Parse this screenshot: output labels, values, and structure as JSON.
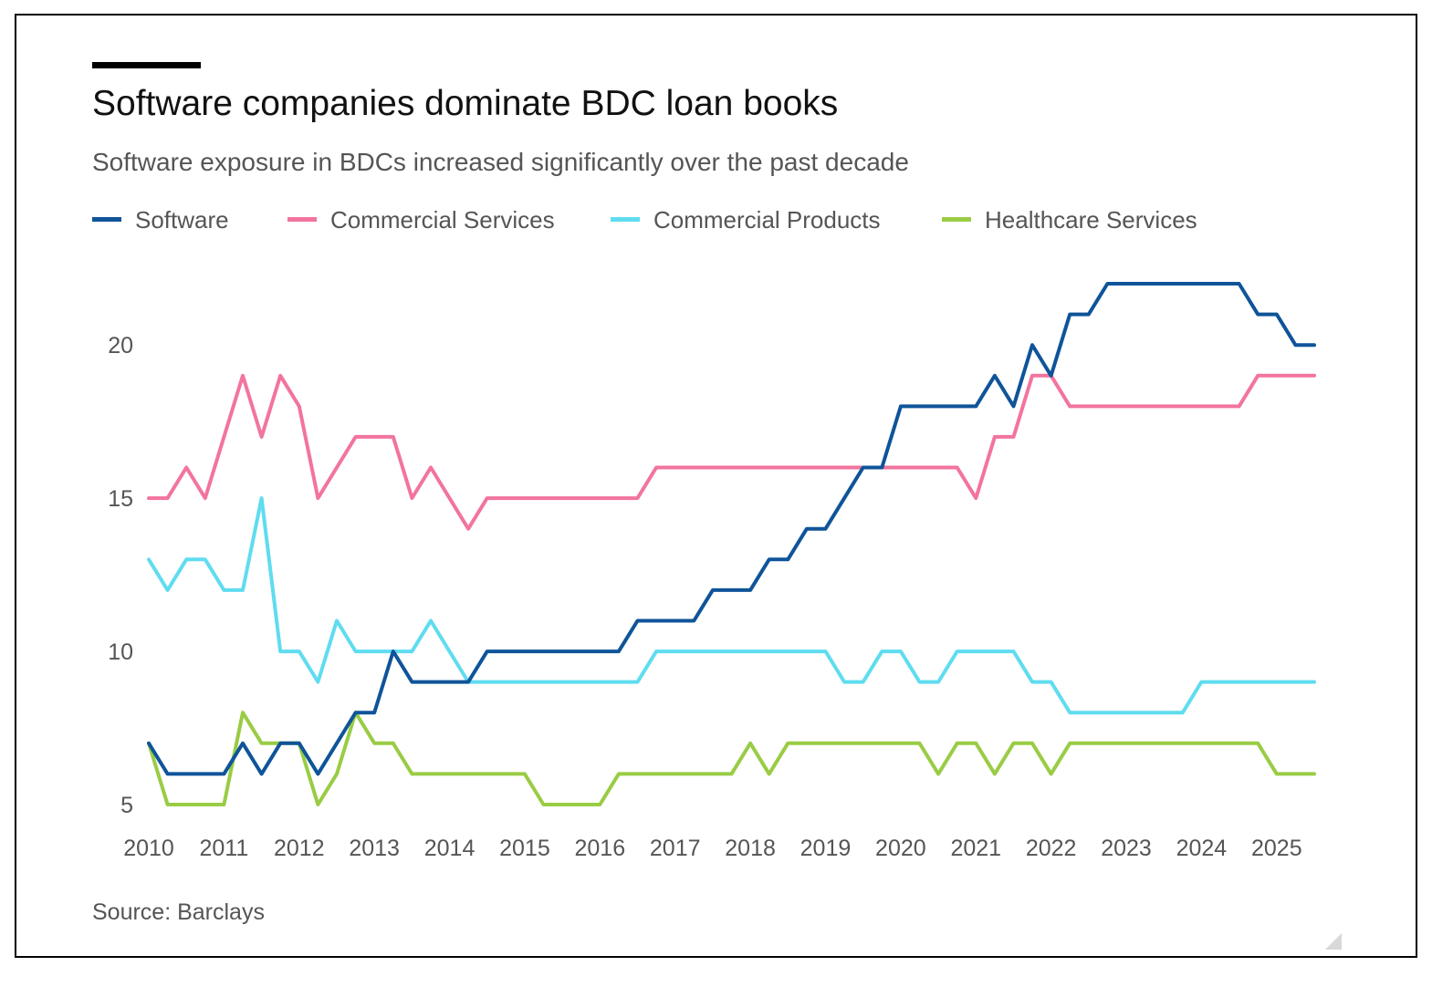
{
  "header": {
    "title": "Software companies dominate BDC loan books",
    "subtitle": "Software exposure in BDCs increased significantly over the past decade"
  },
  "footer": {
    "source": "Source: Barclays"
  },
  "chart_data": {
    "type": "line",
    "title": "Software companies dominate BDC loan books",
    "subtitle": "Software exposure in BDCs increased significantly over the past decade",
    "xlabel": "",
    "ylabel": "",
    "ylim": [
      5,
      22
    ],
    "xlim": [
      2010,
      2025.5
    ],
    "x_ticks": [
      2010,
      2011,
      2012,
      2013,
      2014,
      2015,
      2016,
      2017,
      2018,
      2019,
      2020,
      2021,
      2022,
      2023,
      2024,
      2025
    ],
    "y_ticks": [
      5,
      10,
      15,
      20
    ],
    "grid": false,
    "legend_position": "top",
    "x": [
      2010,
      2010.25,
      2010.5,
      2010.75,
      2011,
      2011.25,
      2011.5,
      2011.75,
      2012,
      2012.25,
      2012.5,
      2012.75,
      2013,
      2013.25,
      2013.5,
      2013.75,
      2014,
      2014.25,
      2014.5,
      2014.75,
      2015,
      2015.25,
      2015.5,
      2015.75,
      2016,
      2016.25,
      2016.5,
      2016.75,
      2017,
      2017.25,
      2017.5,
      2017.75,
      2018,
      2018.25,
      2018.5,
      2018.75,
      2019,
      2019.25,
      2019.5,
      2019.75,
      2020,
      2020.25,
      2020.5,
      2020.75,
      2021,
      2021.25,
      2021.5,
      2021.75,
      2022,
      2022.25,
      2022.5,
      2022.75,
      2023,
      2023.25,
      2023.5,
      2023.75,
      2024,
      2024.25,
      2024.5,
      2024.75,
      2025,
      2025.25,
      2025.5
    ],
    "series": [
      {
        "name": "Software",
        "color": "#0f5499",
        "values": [
          7,
          6,
          6,
          6,
          6,
          7,
          6,
          7,
          7,
          6,
          7,
          8,
          8,
          10,
          9,
          9,
          9,
          9,
          10,
          10,
          10,
          10,
          10,
          10,
          10,
          10,
          11,
          11,
          11,
          11,
          12,
          12,
          12,
          13,
          13,
          14,
          14,
          15,
          16,
          16,
          18,
          18,
          18,
          18,
          18,
          19,
          18,
          20,
          19,
          21,
          21,
          22,
          22,
          22,
          22,
          22,
          22,
          22,
          22,
          21,
          21,
          20,
          20
        ]
      },
      {
        "name": "Commercial Services",
        "color": "#f2749e",
        "values": [
          15,
          15,
          16,
          15,
          17,
          19,
          17,
          19,
          18,
          15,
          16,
          17,
          17,
          17,
          15,
          16,
          15,
          14,
          15,
          15,
          15,
          15,
          15,
          15,
          15,
          15,
          15,
          16,
          16,
          16,
          16,
          16,
          16,
          16,
          16,
          16,
          16,
          16,
          16,
          16,
          16,
          16,
          16,
          16,
          15,
          17,
          17,
          19,
          19,
          18,
          18,
          18,
          18,
          18,
          18,
          18,
          18,
          18,
          18,
          19,
          19,
          19,
          19
        ]
      },
      {
        "name": "Commercial Products",
        "color": "#5fdcf0",
        "values": [
          13,
          12,
          13,
          13,
          12,
          12,
          15,
          10,
          10,
          9,
          11,
          10,
          10,
          10,
          10,
          11,
          10,
          9,
          9,
          9,
          9,
          9,
          9,
          9,
          9,
          9,
          9,
          10,
          10,
          10,
          10,
          10,
          10,
          10,
          10,
          10,
          10,
          9,
          9,
          10,
          10,
          9,
          9,
          10,
          10,
          10,
          10,
          9,
          9,
          8,
          8,
          8,
          8,
          8,
          8,
          8,
          9,
          9,
          9,
          9,
          9,
          9,
          9
        ]
      },
      {
        "name": "Healthcare Services",
        "color": "#99cc44",
        "values": [
          7,
          5,
          5,
          5,
          5,
          8,
          7,
          7,
          7,
          5,
          6,
          8,
          7,
          7,
          6,
          6,
          6,
          6,
          6,
          6,
          6,
          5,
          5,
          5,
          5,
          6,
          6,
          6,
          6,
          6,
          6,
          6,
          7,
          6,
          7,
          7,
          7,
          7,
          7,
          7,
          7,
          7,
          6,
          7,
          7,
          6,
          7,
          7,
          6,
          7,
          7,
          7,
          7,
          7,
          7,
          7,
          7,
          7,
          7,
          7,
          6,
          6,
          6
        ]
      }
    ]
  }
}
